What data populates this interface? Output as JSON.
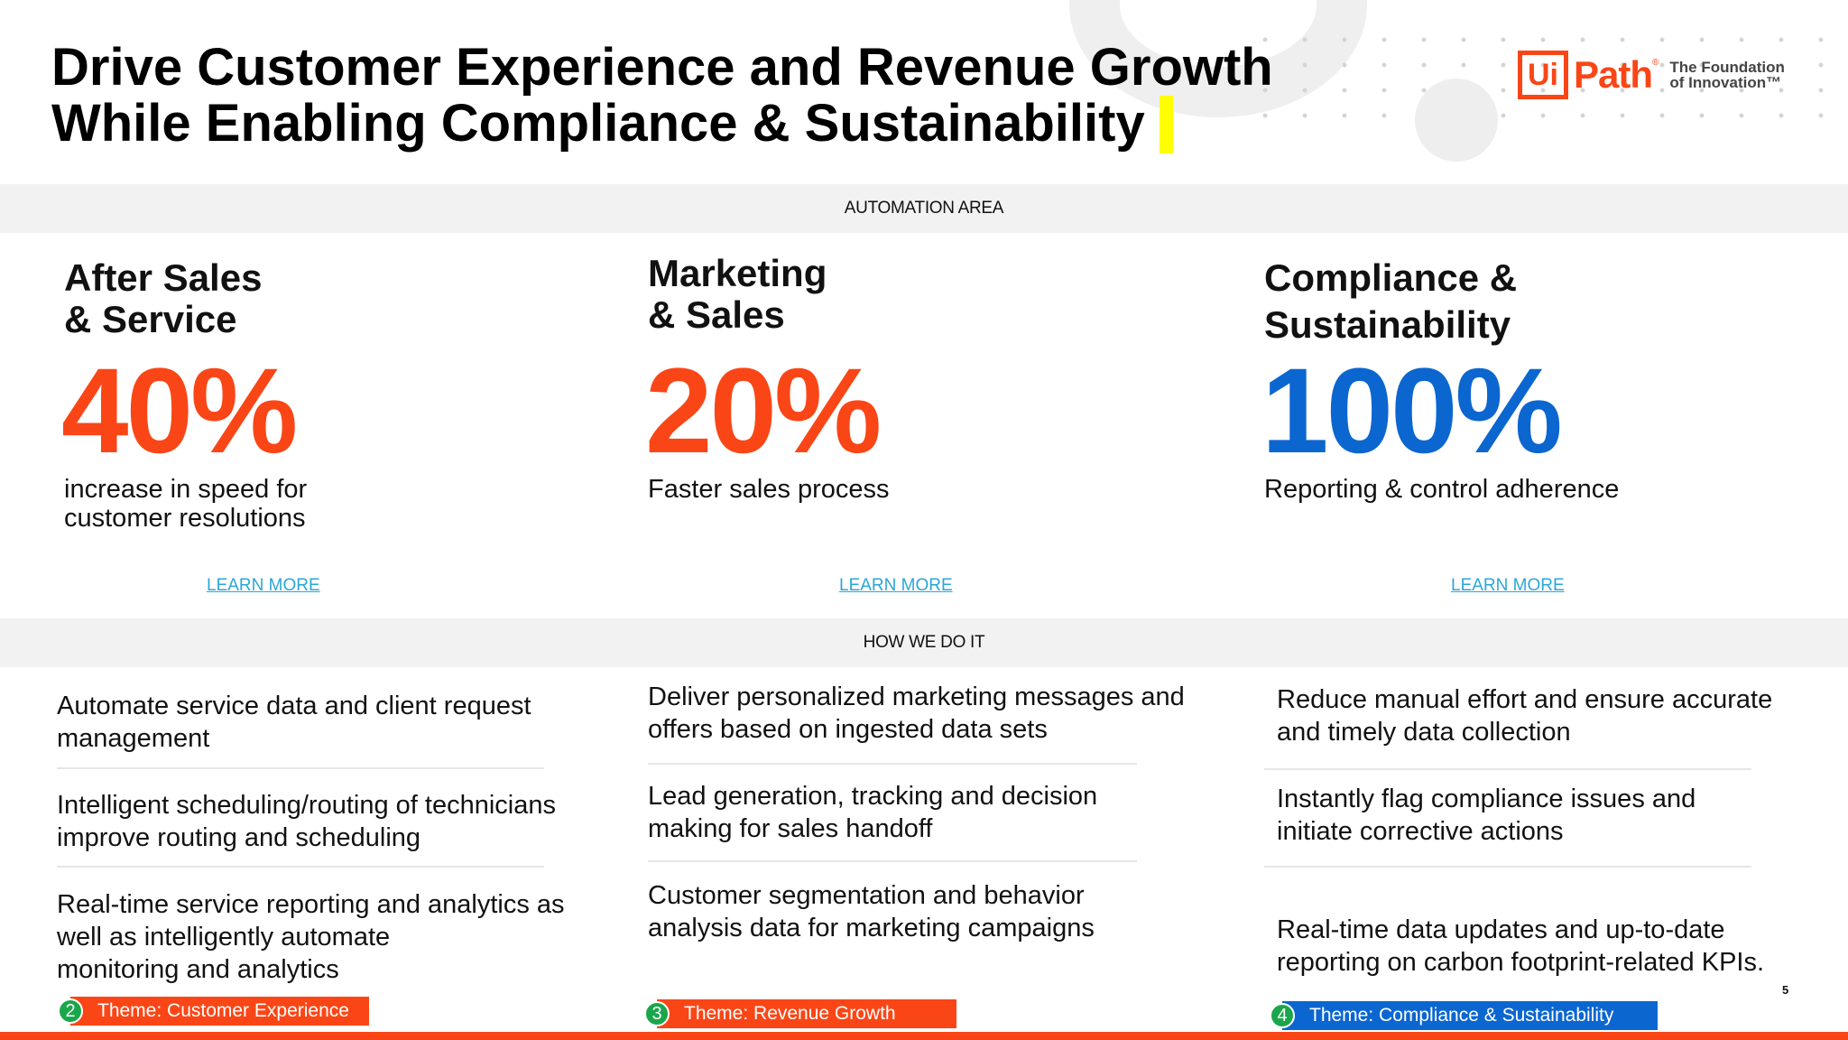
{
  "slide": {
    "title_line1": "Drive Customer Experience and Revenue Growth",
    "title_line2": "While Enabling Compliance & Sustainability",
    "page_number": "5"
  },
  "logo": {
    "box": "Ui",
    "word": "Path",
    "reg": "®",
    "tagline_1": "The Foundation",
    "tagline_2": "of Innovation™"
  },
  "bands": {
    "automation_area": "AUTOMATION AREA",
    "how_we_do_it": "HOW WE DO IT"
  },
  "columns": [
    {
      "heading_1": "After Sales",
      "heading_2": "& Service",
      "stat": "40%",
      "stat_color": "#fa4616",
      "desc_1": "increase in speed for",
      "desc_2": "customer resolutions",
      "learn_more": "LEARN MORE",
      "items": [
        {
          "line1": "Automate service data and client request",
          "line2": "management"
        },
        {
          "line1": "Intelligent scheduling/routing of technicians",
          "line2": "improve routing and scheduling"
        },
        {
          "line1": "Real-time service reporting and analytics as",
          "line2": "well as intelligently automate",
          "line3": "monitoring and analytics"
        }
      ],
      "theme_num": "2",
      "theme_label": "Theme: Customer Experience",
      "theme_color": "#fa4616"
    },
    {
      "heading_1": "Marketing",
      "heading_2": "& Sales",
      "stat": "20%",
      "stat_color": "#fa4616",
      "desc_1": "Faster sales process",
      "learn_more": "LEARN MORE",
      "items": [
        {
          "line1": "Deliver personalized marketing messages and",
          "line2": "offers based on ingested data sets"
        },
        {
          "line1": "Lead generation, tracking and decision",
          "line2": "making for sales handoff"
        },
        {
          "line1": "Customer segmentation and behavior",
          "line2": "analysis data for marketing campaigns"
        }
      ],
      "theme_num": "3",
      "theme_label": "Theme: Revenue Growth",
      "theme_color": "#fa4616"
    },
    {
      "heading_1": "Compliance &",
      "heading_2": "Sustainability",
      "stat": "100%",
      "stat_color": "#0b66d0",
      "desc_1": "Reporting & control adherence",
      "learn_more": "LEARN MORE",
      "items": [
        {
          "line1": "Reduce manual effort and ensure accurate",
          "line2": "and timely data collection"
        },
        {
          "line1": "Instantly flag compliance issues and",
          "line2": "initiate corrective actions"
        },
        {
          "line1": "Real-time data updates and up-to-date",
          "line2": "reporting on carbon footprint-related KPIs."
        }
      ],
      "theme_num": "4",
      "theme_label": "Theme: Compliance & Sustainability",
      "theme_color": "#0b66d0"
    }
  ]
}
